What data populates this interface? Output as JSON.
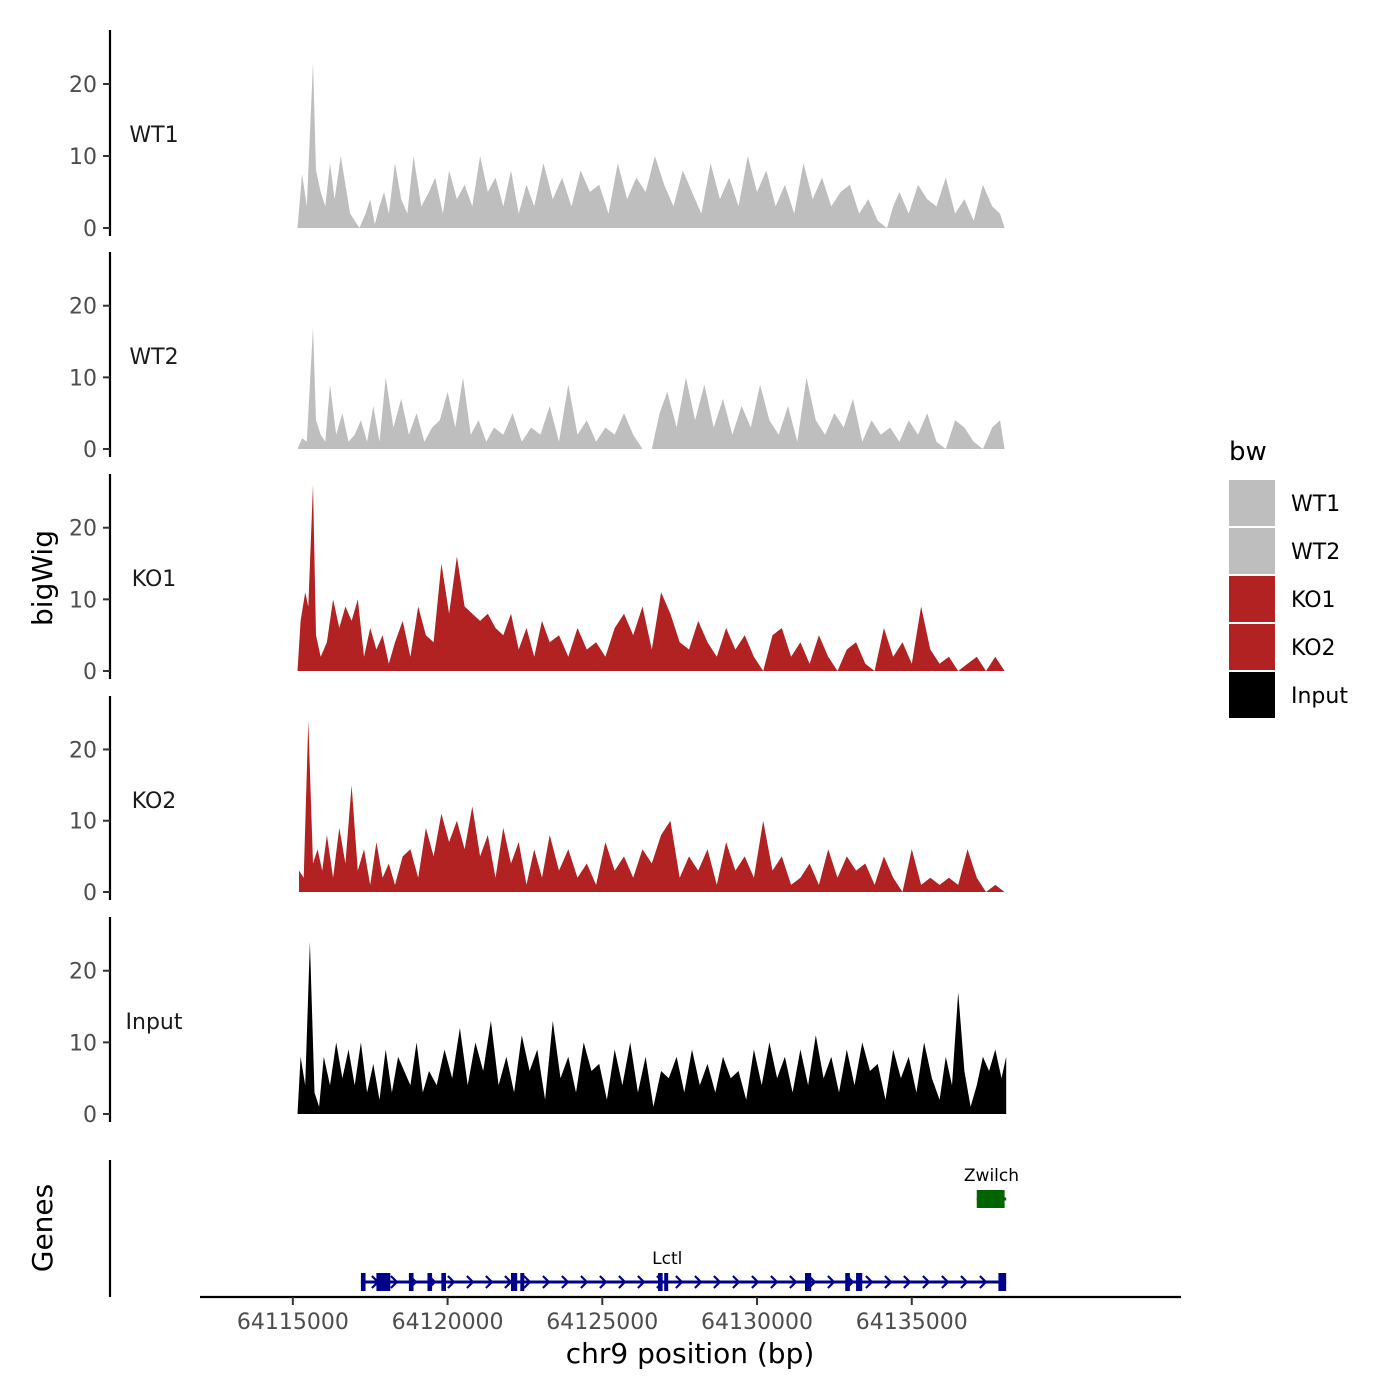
{
  "chart_data": {
    "type": "area",
    "x_axis": {
      "label": "chr9 position (bp)",
      "range": [
        64112000,
        64143700
      ],
      "ticks": [
        64115000,
        64120000,
        64125000,
        64130000,
        64135000
      ],
      "tick_labels": [
        "64115000",
        "64120000",
        "64125000",
        "64130000",
        "64135000"
      ]
    },
    "y_axis": {
      "label": "bigWig",
      "range": [
        0,
        27.5
      ],
      "ticks": [
        0,
        10,
        20
      ],
      "tick_labels": [
        "0",
        "10",
        "20"
      ]
    },
    "legend": {
      "title": "bw",
      "position": "right",
      "entries": [
        {
          "label": "WT1",
          "color": "#bebebe"
        },
        {
          "label": "WT2",
          "color": "#bebebe"
        },
        {
          "label": "KO1",
          "color": "#b22222"
        },
        {
          "label": "KO2",
          "color": "#b22222"
        },
        {
          "label": "Input",
          "color": "#000000"
        }
      ]
    },
    "series": [
      {
        "name": "WT1",
        "color": "#bebebe",
        "x": [
          64115150,
          64115300,
          64115450,
          64115650,
          64115750,
          64115900,
          64116050,
          64116200,
          64116350,
          64116550,
          64116700,
          64116850,
          64117000,
          64117150,
          64117350,
          64117500,
          64117650,
          64117800,
          64117950,
          64118100,
          64118300,
          64118500,
          64118700,
          64118900,
          64119150,
          64119400,
          64119600,
          64119850,
          64120050,
          64120300,
          64120550,
          64120800,
          64121050,
          64121300,
          64121550,
          64121800,
          64122050,
          64122300,
          64122550,
          64122800,
          64123100,
          64123400,
          64123700,
          64124000,
          64124300,
          64124600,
          64124900,
          64125200,
          64125500,
          64125800,
          64126100,
          64126400,
          64126700,
          64127000,
          64127300,
          64127600,
          64127900,
          64128200,
          64128500,
          64128800,
          64129100,
          64129400,
          64129700,
          64130000,
          64130300,
          64130600,
          64130900,
          64131200,
          64131500,
          64131800,
          64132100,
          64132400,
          64132700,
          64133000,
          64133300,
          64133600,
          64133900,
          64134200,
          64134400,
          64134600,
          64134900,
          64135200,
          64135500,
          64135800,
          64136100,
          64136400,
          64136700,
          64137000,
          64137300,
          64137600,
          64137850,
          64138000
        ],
        "y": [
          0,
          7.5,
          3,
          23,
          8,
          5,
          3,
          9,
          4,
          10,
          6,
          2,
          1,
          0,
          2,
          4,
          0.5,
          3,
          5,
          2,
          9,
          4,
          2,
          10,
          3,
          5,
          7,
          2,
          8,
          4,
          6,
          3,
          10,
          5,
          7,
          3,
          8,
          2,
          6,
          3,
          9,
          4,
          7,
          3,
          8,
          5,
          6,
          2,
          9,
          4,
          7,
          5,
          10,
          6,
          3,
          8,
          5,
          2,
          9,
          4,
          7,
          3,
          10,
          5,
          8,
          3,
          6,
          2,
          9,
          4,
          7,
          3,
          5,
          6,
          2,
          4,
          1,
          0,
          3,
          5,
          2,
          6,
          4,
          3,
          7,
          2,
          4,
          1,
          6,
          3,
          2,
          0
        ]
      },
      {
        "name": "WT2",
        "color": "#bebebe",
        "x": [
          64115150,
          64115300,
          64115450,
          64115650,
          64115750,
          64115900,
          64116050,
          64116200,
          64116400,
          64116600,
          64116800,
          64117000,
          64117200,
          64117400,
          64117600,
          64117800,
          64118000,
          64118250,
          64118500,
          64118750,
          64119000,
          64119250,
          64119500,
          64119750,
          64120000,
          64120250,
          64120500,
          64120750,
          64121000,
          64121250,
          64121500,
          64121800,
          64122100,
          64122400,
          64122700,
          64123000,
          64123300,
          64123600,
          64123900,
          64124200,
          64124500,
          64124800,
          64125100,
          64125400,
          64125700,
          64126000,
          64126300,
          64126600,
          64126850,
          64127100,
          64127400,
          64127700,
          64128000,
          64128300,
          64128600,
          64128900,
          64129200,
          64129500,
          64129800,
          64130100,
          64130400,
          64130700,
          64131000,
          64131300,
          64131600,
          64131900,
          64132200,
          64132500,
          64132800,
          64133100,
          64133400,
          64133700,
          64134000,
          64134300,
          64134600,
          64134900,
          64135200,
          64135500,
          64135800,
          64136100,
          64136400,
          64136700,
          64137000,
          64137300,
          64137600,
          64137850,
          64138000
        ],
        "y": [
          0,
          1.5,
          1,
          17,
          4,
          2,
          1,
          9,
          2,
          5,
          1,
          2,
          4,
          1,
          6,
          1,
          10,
          3,
          7,
          2,
          5,
          1,
          3,
          4,
          8,
          3,
          10,
          2,
          4,
          1,
          3,
          2,
          5,
          1,
          3,
          2,
          6,
          1,
          9,
          2,
          4,
          1,
          3,
          2,
          5,
          2,
          0,
          0,
          5,
          8,
          3,
          10,
          4,
          9,
          3,
          7,
          2,
          6,
          3,
          9,
          4,
          2,
          6,
          1,
          10,
          4,
          2,
          5,
          3,
          7,
          1,
          4,
          2,
          3,
          1,
          4,
          2,
          5,
          1,
          0,
          4,
          3,
          1,
          0,
          3,
          4,
          0
        ]
      },
      {
        "name": "KO1",
        "color": "#b22222",
        "x": [
          64115150,
          64115250,
          64115400,
          64115500,
          64115650,
          64115750,
          64115900,
          64116100,
          64116300,
          64116500,
          64116700,
          64116900,
          64117100,
          64117300,
          64117500,
          64117700,
          64117900,
          64118100,
          64118300,
          64118550,
          64118800,
          64119050,
          64119300,
          64119550,
          64119800,
          64120050,
          64120300,
          64120550,
          64120800,
          64121050,
          64121300,
          64121550,
          64121800,
          64122050,
          64122300,
          64122550,
          64122800,
          64123050,
          64123300,
          64123600,
          64123900,
          64124200,
          64124500,
          64124800,
          64125100,
          64125400,
          64125700,
          64126000,
          64126300,
          64126600,
          64126900,
          64127200,
          64127500,
          64127800,
          64128100,
          64128400,
          64128700,
          64129000,
          64129300,
          64129600,
          64129900,
          64130200,
          64130500,
          64130800,
          64131100,
          64131400,
          64131700,
          64132000,
          64132300,
          64132600,
          64132900,
          64133200,
          64133500,
          64133800,
          64134100,
          64134400,
          64134700,
          64135000,
          64135300,
          64135600,
          64135900,
          64136200,
          64136500,
          64136800,
          64137100,
          64137400,
          64137700,
          64138000
        ],
        "y": [
          0,
          7,
          11,
          9,
          26,
          5,
          2,
          4,
          10,
          6,
          9,
          7,
          10,
          2,
          6,
          3,
          5,
          1,
          4,
          7,
          2,
          9,
          5,
          4,
          15,
          8,
          16,
          9,
          8,
          7,
          8,
          6,
          5,
          8,
          3,
          6,
          2,
          7,
          4,
          5,
          2,
          6,
          3,
          4,
          2,
          6,
          8,
          5,
          9,
          3,
          11,
          8,
          4,
          3,
          7,
          4,
          2,
          6,
          3,
          5,
          2,
          0,
          5,
          6,
          2,
          4,
          1,
          5,
          2,
          0,
          3,
          4,
          1,
          0,
          6,
          2,
          4,
          1,
          9,
          3,
          1,
          2,
          0,
          1,
          2,
          0,
          2,
          0
        ]
      },
      {
        "name": "KO2",
        "color": "#b22222",
        "x": [
          64115200,
          64115350,
          64115500,
          64115650,
          64115800,
          64115950,
          64116100,
          64116300,
          64116500,
          64116700,
          64116900,
          64117100,
          64117300,
          64117500,
          64117700,
          64117900,
          64118100,
          64118300,
          64118550,
          64118800,
          64119050,
          64119300,
          64119550,
          64119800,
          64120050,
          64120300,
          64120550,
          64120800,
          64121050,
          64121300,
          64121550,
          64121800,
          64122050,
          64122300,
          64122550,
          64122800,
          64123050,
          64123300,
          64123600,
          64123900,
          64124200,
          64124500,
          64124800,
          64125100,
          64125400,
          64125700,
          64126000,
          64126300,
          64126600,
          64126900,
          64127200,
          64127500,
          64127800,
          64128100,
          64128400,
          64128700,
          64129000,
          64129300,
          64129600,
          64129900,
          64130200,
          64130500,
          64130800,
          64131100,
          64131400,
          64131700,
          64132000,
          64132300,
          64132600,
          64132900,
          64133200,
          64133500,
          64133800,
          64134100,
          64134400,
          64134700,
          64135000,
          64135300,
          64135600,
          64135900,
          64136200,
          64136500,
          64136800,
          64137100,
          64137400,
          64137700,
          64138000
        ],
        "y": [
          3,
          2,
          24,
          4,
          6,
          3,
          8,
          2,
          9,
          4,
          15,
          3,
          6,
          1,
          7,
          2,
          4,
          1,
          5,
          6,
          2,
          9,
          5,
          11,
          7,
          10,
          6,
          12,
          5,
          8,
          2,
          9,
          4,
          7,
          1,
          6,
          2,
          8,
          3,
          6,
          2,
          4,
          1,
          7,
          3,
          5,
          2,
          6,
          4,
          8,
          10,
          2,
          5,
          3,
          6,
          1,
          7,
          3,
          5,
          2,
          10,
          3,
          5,
          1,
          2,
          4,
          1,
          6,
          2,
          5,
          3,
          4,
          1,
          5,
          2,
          0,
          6,
          1,
          2,
          1,
          2,
          1,
          6,
          2,
          0,
          1,
          0
        ]
      },
      {
        "name": "Input",
        "color": "#000000",
        "x": [
          64115150,
          64115250,
          64115400,
          64115550,
          64115700,
          64115850,
          64116000,
          64116200,
          64116400,
          64116600,
          64116800,
          64117000,
          64117200,
          64117400,
          64117600,
          64117800,
          64118000,
          64118200,
          64118400,
          64118600,
          64118800,
          64119000,
          64119200,
          64119400,
          64119650,
          64119900,
          64120150,
          64120400,
          64120650,
          64120900,
          64121150,
          64121400,
          64121650,
          64121900,
          64122150,
          64122400,
          64122650,
          64122900,
          64123150,
          64123400,
          64123650,
          64123900,
          64124150,
          64124400,
          64124650,
          64124900,
          64125150,
          64125400,
          64125650,
          64125900,
          64126150,
          64126400,
          64126650,
          64126900,
          64127150,
          64127400,
          64127650,
          64127900,
          64128150,
          64128400,
          64128650,
          64128900,
          64129150,
          64129400,
          64129650,
          64129900,
          64130150,
          64130400,
          64130650,
          64130900,
          64131150,
          64131400,
          64131650,
          64131900,
          64132150,
          64132400,
          64132650,
          64132900,
          64133150,
          64133400,
          64133650,
          64133900,
          64134150,
          64134400,
          64134650,
          64134900,
          64135150,
          64135400,
          64135650,
          64135900,
          64136100,
          64136300,
          64136500,
          64136700,
          64136900,
          64137100,
          64137300,
          64137500,
          64137700,
          64137900,
          64138050
        ],
        "y": [
          0,
          8,
          4,
          24,
          3,
          1,
          8,
          4,
          10,
          5,
          9,
          4,
          10,
          3,
          7,
          2,
          9,
          3,
          8,
          6,
          4,
          10,
          3,
          6,
          4,
          9,
          5,
          12,
          4,
          10,
          6,
          13,
          4,
          8,
          3,
          11,
          6,
          9,
          2,
          13,
          5,
          8,
          3,
          10,
          6,
          7,
          2,
          9,
          4,
          10,
          3,
          8,
          1,
          6,
          5,
          8,
          3,
          9,
          4,
          7,
          3,
          8,
          5,
          6,
          2,
          9,
          4,
          10,
          5,
          8,
          3,
          9,
          4,
          11,
          5,
          8,
          3,
          9,
          4,
          10,
          6,
          7,
          2,
          9,
          5,
          8,
          3,
          10,
          5,
          2,
          8,
          4,
          17,
          6,
          1,
          4,
          8,
          6,
          9,
          5,
          8
        ]
      }
    ],
    "genes_track": {
      "label": "Genes",
      "genes": [
        {
          "name": "Lctl",
          "strand": "+",
          "color": "#00008b",
          "start": 64117200,
          "end": 64138050,
          "exons": [
            [
              64117200,
              64117350
            ],
            [
              64117700,
              64118150
            ],
            [
              64118750,
              64118900
            ],
            [
              64119350,
              64119500
            ],
            [
              64119800,
              64119950
            ],
            [
              64122050,
              64122250
            ],
            [
              64122350,
              64122450
            ],
            [
              64126800,
              64126950
            ],
            [
              64127000,
              64127100
            ],
            [
              64131550,
              64131750
            ],
            [
              64132850,
              64133000
            ],
            [
              64133200,
              64133400
            ],
            [
              64137800,
              64138050
            ]
          ]
        },
        {
          "name": "Zwilch",
          "strand": "-",
          "color": "#006400",
          "start": 64137100,
          "end": 64138050,
          "exons": [
            [
              64137100,
              64138000
            ]
          ]
        }
      ]
    }
  }
}
